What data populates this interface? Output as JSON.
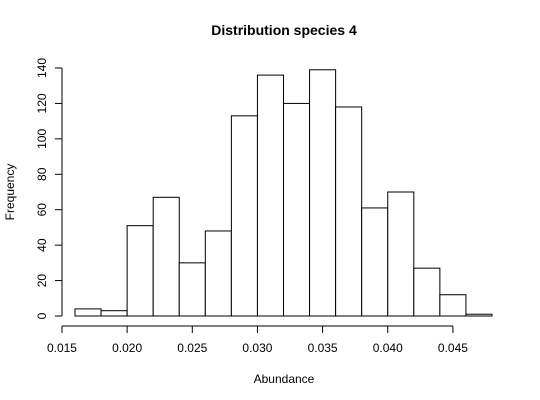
{
  "chart_data": {
    "type": "bar",
    "title": "Distribution species 4",
    "xlabel": "Abundance",
    "ylabel": "Frequency",
    "xlim": [
      0.016,
      0.048
    ],
    "ylim": [
      0,
      140
    ],
    "x_ticks": [
      0.015,
      0.02,
      0.025,
      0.03,
      0.035,
      0.04,
      0.045
    ],
    "x_tick_labels": [
      "0.015",
      "0.020",
      "0.025",
      "0.030",
      "0.035",
      "0.040",
      "0.045"
    ],
    "y_ticks": [
      0,
      20,
      40,
      60,
      80,
      100,
      120,
      140
    ],
    "y_tick_labels": [
      "0",
      "20",
      "40",
      "60",
      "80",
      "100",
      "120",
      "140"
    ],
    "bin_edges": [
      0.016,
      0.018,
      0.02,
      0.022,
      0.024,
      0.026,
      0.028,
      0.03,
      0.032,
      0.034,
      0.036,
      0.038,
      0.04,
      0.042,
      0.044,
      0.046,
      0.048
    ],
    "values": [
      4,
      3,
      51,
      67,
      30,
      48,
      113,
      136,
      120,
      139,
      118,
      61,
      70,
      27,
      12,
      1
    ],
    "grid": false,
    "legend": "none"
  }
}
